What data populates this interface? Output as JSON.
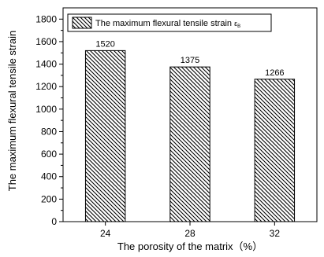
{
  "chart_data": {
    "type": "bar",
    "categories": [
      "24",
      "28",
      "32"
    ],
    "values": [
      1520,
      1375,
      1266
    ],
    "data_labels": [
      "1520",
      "1375",
      "1266"
    ],
    "xlabel": "The porosity of the matrix（%）",
    "ylabel": "The maximum flexural tensile strain",
    "ylim": [
      0,
      1900
    ],
    "yticks": [
      0,
      200,
      400,
      600,
      800,
      1000,
      1200,
      1400,
      1600,
      1800
    ],
    "grid": false,
    "legend": {
      "entries": [
        {
          "name": "The maximum flexural tensile strain",
          "subscript": "ε",
          "subscript2": "B"
        }
      ],
      "placement": "top-left"
    },
    "bar_fill": "diagonal-hatch",
    "colors": {
      "bar_stroke": "#000000",
      "hatch": "#000000",
      "background": "#ffffff"
    }
  }
}
